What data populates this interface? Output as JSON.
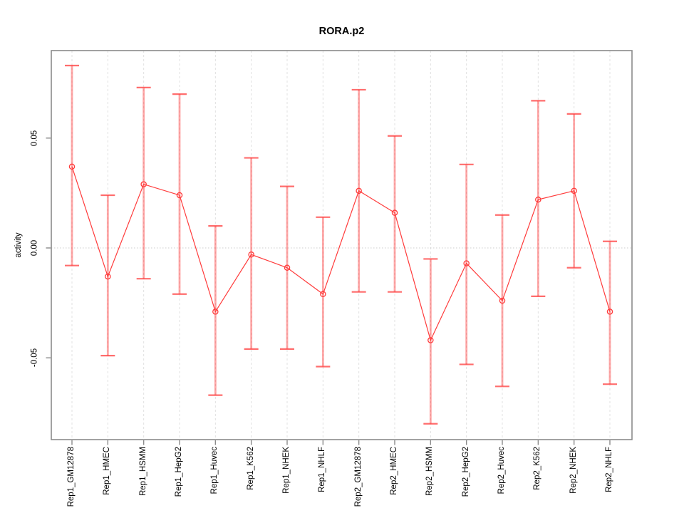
{
  "chart_data": {
    "type": "line",
    "title": "RORA.p2",
    "ylabel": "activity",
    "xlabel": "",
    "categories": [
      "Rep1_GM12878",
      "Rep1_HMEC",
      "Rep1_HSMM",
      "Rep1_HepG2",
      "Rep1_Huvec",
      "Rep1_K562",
      "Rep1_NHEK",
      "Rep1_NHLF",
      "Rep2_GM12878",
      "Rep2_HMEC",
      "Rep2_HSMM",
      "Rep2_HepG2",
      "Rep2_Huvec",
      "Rep2_K562",
      "Rep2_NHEK",
      "Rep2_NHLF"
    ],
    "series": [
      {
        "name": "activity",
        "values": [
          0.037,
          -0.013,
          0.029,
          0.024,
          -0.029,
          -0.003,
          -0.009,
          -0.021,
          0.026,
          0.016,
          -0.042,
          -0.007,
          -0.024,
          0.022,
          0.026,
          -0.029
        ],
        "error_upper": [
          0.083,
          0.024,
          0.073,
          0.07,
          0.01,
          0.041,
          0.028,
          0.014,
          0.072,
          0.051,
          -0.005,
          0.038,
          0.015,
          0.067,
          0.061,
          0.003
        ],
        "error_lower": [
          -0.008,
          -0.049,
          -0.014,
          -0.021,
          -0.067,
          -0.046,
          -0.046,
          -0.054,
          -0.02,
          -0.02,
          -0.08,
          -0.053,
          -0.063,
          -0.022,
          -0.009,
          -0.062
        ]
      }
    ],
    "yticks": [
      0.05,
      0.0,
      -0.05
    ],
    "ytick_labels": [
      "0.05",
      "0.00",
      "-0.05"
    ],
    "ylim": [
      -0.087,
      0.09
    ],
    "grid": {
      "vertical_gridlines": "dashed",
      "zero_line": "dotted",
      "legend": "none"
    },
    "style": {
      "marker": "open-circle",
      "point_line_color": "#ff3b3b",
      "error_bar_color": "rgba(255,60,60,0.45)",
      "error_cap_color": "rgba(255,60,60,0.75)",
      "frame_color": "#8a8a8a",
      "gridline_color": "#e0e0e0",
      "zero_line_color": "#cccccc",
      "text_color": "#000000"
    }
  }
}
